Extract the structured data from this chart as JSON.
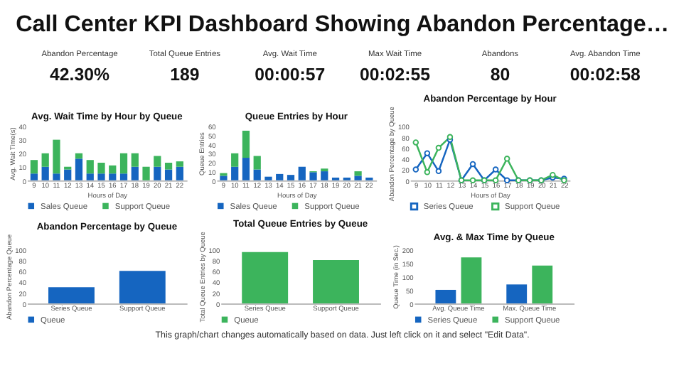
{
  "chart_data": [
    {
      "type": "other",
      "title": "Call Center KPI Dashboard Showing Abandon Percentage…",
      "annotations": [
        "Abandon Percentage",
        "42.30%",
        "Total Queue Entries",
        "189",
        "Avg. Wait Time",
        "00:00:57",
        "Max Wait Time",
        "00:02:55",
        "Abandons",
        "80",
        "Avg. Abandon Time",
        "00:02:58"
      ]
    },
    {
      "type": "bar",
      "title": "Avg. Wait Time by Hour by Queue",
      "xlabel": "Hours of Day",
      "ylabel": "Avg. Wait Time(s)",
      "stacked": true,
      "legend": "bottom",
      "categories": [
        "9",
        "10",
        "11",
        "12",
        "13",
        "14",
        "15",
        "16",
        "17",
        "18",
        "19",
        "20",
        "21",
        "22"
      ],
      "ylim": [
        0,
        40
      ],
      "yticks": [
        0,
        10,
        20,
        30,
        40
      ],
      "series": [
        {
          "name": "Sales Queue",
          "color": "#1565c0",
          "values": [
            5,
            10,
            5,
            8,
            16,
            5,
            5,
            5,
            5,
            10,
            0,
            10,
            8,
            10
          ]
        },
        {
          "name": "Support Queue",
          "color": "#3cb45c",
          "values": [
            10,
            10,
            25,
            2,
            4,
            10,
            8,
            6,
            15,
            10,
            10,
            8,
            5,
            4
          ]
        }
      ]
    },
    {
      "type": "bar",
      "title": "Queue Entries by Hour",
      "xlabel": "Hours of Day",
      "ylabel": "Queue Entries",
      "stacked": true,
      "legend": "bottom",
      "categories": [
        "9",
        "10",
        "11",
        "12",
        "13",
        "14",
        "15",
        "16",
        "17",
        "18",
        "19",
        "20",
        "21",
        "22"
      ],
      "ylim": [
        0,
        60
      ],
      "yticks": [
        0,
        10,
        20,
        30,
        40,
        50,
        60
      ],
      "series": [
        {
          "name": "Sales Queue",
          "color": "#1565c0",
          "values": [
            5,
            15,
            25,
            12,
            4,
            7,
            6,
            15,
            9,
            10,
            3,
            3,
            5,
            3
          ]
        },
        {
          "name": "Support Queue",
          "color": "#3cb45c",
          "values": [
            3,
            15,
            30,
            15,
            0,
            0,
            0,
            0,
            1,
            3,
            0,
            0,
            5,
            0
          ]
        }
      ]
    },
    {
      "type": "line",
      "title": "Abandon Percentage by Hour",
      "xlabel": "Hours of Day",
      "ylabel": "Abandon Percentage by Queue",
      "legend": "bottom",
      "marker": "circle",
      "categories": [
        "9",
        "10",
        "11",
        "12",
        "13",
        "14",
        "15",
        "16",
        "17",
        "18",
        "19",
        "20",
        "21",
        "22"
      ],
      "ylim": [
        0,
        100
      ],
      "yticks": [
        0,
        20,
        40,
        60,
        80,
        100
      ],
      "series": [
        {
          "name": "Series Queue",
          "color": "#1565c0",
          "values": [
            20,
            50,
            17,
            75,
            0,
            30,
            0,
            20,
            0,
            0,
            0,
            0,
            5,
            3
          ]
        },
        {
          "name": "Support Queue",
          "color": "#3cb45c",
          "values": [
            70,
            15,
            60,
            80,
            0,
            0,
            0,
            0,
            40,
            0,
            0,
            0,
            10,
            0
          ]
        }
      ]
    },
    {
      "type": "bar",
      "title": "Abandon Percentage by Queue",
      "ylabel": "Abandon Percentage Queue",
      "legend": "bottom",
      "categories": [
        "Series Queue",
        "Support Queue"
      ],
      "ylim": [
        0,
        100
      ],
      "yticks": [
        0,
        20,
        40,
        60,
        80,
        100
      ],
      "series": [
        {
          "name": "Queue",
          "color": "#1565c0",
          "values": [
            30,
            60
          ]
        }
      ]
    },
    {
      "type": "bar",
      "title": "Total Queue Entries by Queue",
      "ylabel": "Total Queue Entries by Queue",
      "legend": "bottom",
      "categories": [
        "Series Queue",
        "Support Queue"
      ],
      "ylim": [
        0,
        100
      ],
      "yticks": [
        0,
        20,
        40,
        60,
        80,
        100
      ],
      "series": [
        {
          "name": "Queue",
          "color": "#3cb45c",
          "values": [
            95,
            80
          ]
        }
      ]
    },
    {
      "type": "bar",
      "title": "Avg. & Max Time by Queue",
      "ylabel": "Queue Time (in Sec.)",
      "legend": "bottom",
      "categories": [
        "Avg. Queue Time",
        "Max. Queue Time"
      ],
      "ylim": [
        0,
        200
      ],
      "yticks": [
        0,
        50,
        100,
        150,
        200
      ],
      "series": [
        {
          "name": "Series Queue",
          "color": "#1565c0",
          "values": [
            50,
            70
          ]
        },
        {
          "name": "Support Queue",
          "color": "#3cb45c",
          "values": [
            170,
            140
          ]
        }
      ]
    },
    {
      "type": "other",
      "annotations": [
        "This graph/chart changes automatically based on data. Just left click on it and select \"Edit Data\"."
      ]
    }
  ]
}
